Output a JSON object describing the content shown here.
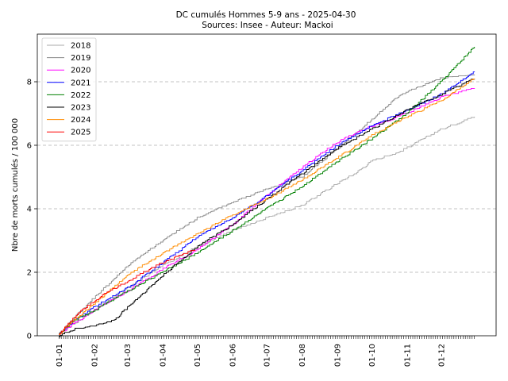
{
  "chart_data": {
    "type": "line",
    "title": "DC cumulés Hommes 5-9 ans  - 2025-04-30",
    "subtitle": "Sources: Insee - Auteur: Mackoi",
    "xlabel": "",
    "ylabel": "Nbre de morts cumulés / 100 000",
    "x_tick_labels": [
      "01-01",
      "01-02",
      "01-03",
      "01-04",
      "01-05",
      "01-06",
      "01-07",
      "01-08",
      "01-09",
      "01-10",
      "01-11",
      "01-12"
    ],
    "x_tick_days": [
      1,
      32,
      61,
      92,
      122,
      153,
      183,
      214,
      245,
      275,
      306,
      336
    ],
    "xlim": [
      -18,
      384
    ],
    "ylim": [
      0,
      9.5
    ],
    "yticks": [
      0,
      2,
      4,
      6,
      8
    ],
    "grid": "horizontal dashed",
    "legend_position": "top-left",
    "series": [
      {
        "name": "2018",
        "color": "#aaaaaa",
        "x": [
          1,
          15,
          32,
          61,
          92,
          122,
          153,
          183,
          214,
          245,
          260,
          275,
          300,
          336,
          365
        ],
        "values": [
          0.05,
          0.4,
          0.8,
          1.5,
          2.2,
          2.8,
          3.3,
          3.7,
          4.1,
          4.8,
          5.1,
          5.5,
          5.8,
          6.5,
          6.9
        ]
      },
      {
        "name": "2019",
        "color": "#888888",
        "x": [
          1,
          15,
          32,
          61,
          92,
          122,
          153,
          183,
          214,
          245,
          275,
          300,
          336,
          365
        ],
        "values": [
          0.05,
          0.6,
          1.2,
          2.2,
          3.0,
          3.7,
          4.2,
          4.6,
          5.0,
          5.9,
          6.8,
          7.6,
          8.1,
          8.2
        ]
      },
      {
        "name": "2020",
        "color": "#ff00ff",
        "x": [
          1,
          15,
          32,
          61,
          92,
          122,
          153,
          183,
          214,
          245,
          275,
          306,
          336,
          365
        ],
        "values": [
          0.05,
          0.4,
          0.8,
          1.4,
          2.1,
          2.7,
          3.5,
          4.4,
          5.3,
          6.1,
          6.6,
          7.0,
          7.5,
          7.8
        ]
      },
      {
        "name": "2021",
        "color": "#0000ff",
        "x": [
          1,
          15,
          32,
          61,
          92,
          122,
          153,
          183,
          214,
          245,
          275,
          306,
          336,
          365
        ],
        "values": [
          0.05,
          0.5,
          0.9,
          1.5,
          2.3,
          3.1,
          3.7,
          4.4,
          5.2,
          6.0,
          6.6,
          7.1,
          7.6,
          8.3
        ]
      },
      {
        "name": "2022",
        "color": "#008000",
        "x": [
          1,
          15,
          32,
          61,
          92,
          122,
          153,
          183,
          214,
          245,
          275,
          306,
          336,
          365
        ],
        "values": [
          0.05,
          0.5,
          0.8,
          1.4,
          2.0,
          2.6,
          3.3,
          4.0,
          4.7,
          5.5,
          6.2,
          7.0,
          8.0,
          9.1
        ]
      },
      {
        "name": "2023",
        "color": "#000000",
        "x": [
          1,
          15,
          32,
          50,
          61,
          92,
          122,
          153,
          183,
          214,
          245,
          275,
          306,
          336,
          365
        ],
        "values": [
          0.0,
          0.2,
          0.3,
          0.5,
          0.9,
          1.9,
          2.8,
          3.5,
          4.3,
          5.1,
          5.9,
          6.5,
          7.1,
          7.6,
          8.1
        ]
      },
      {
        "name": "2024",
        "color": "#ff8c00",
        "x": [
          1,
          15,
          32,
          61,
          92,
          122,
          153,
          183,
          214,
          245,
          275,
          306,
          336,
          365
        ],
        "values": [
          0.05,
          0.5,
          1.0,
          1.9,
          2.6,
          3.2,
          3.8,
          4.3,
          4.9,
          5.6,
          6.3,
          6.9,
          7.4,
          8.1
        ]
      },
      {
        "name": "2025",
        "color": "#ff0000",
        "x": [
          1,
          10,
          20,
          32,
          45,
          61,
          75,
          92,
          105,
          120
        ],
        "values": [
          0.05,
          0.4,
          0.8,
          1.1,
          1.4,
          1.7,
          2.0,
          2.3,
          2.5,
          2.7
        ]
      }
    ]
  }
}
